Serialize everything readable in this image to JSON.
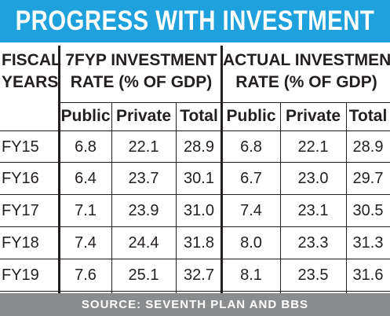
{
  "title": "PROGRESS WITH INVESTMENT",
  "header": {
    "col_years_line1": "FISCAL",
    "col_years_line2": "YEARS",
    "plan_line1": "7FYP INVESTMENT",
    "plan_line2": "RATE (% OF GDP)",
    "actual_line1": "ACTUAL INVESTMENT",
    "actual_line2": "RATE (% OF GDP)"
  },
  "subheaders": [
    "Public",
    "Private",
    "Total",
    "Public",
    "Private",
    "Total"
  ],
  "source": "SOURCE: SEVENTH PLAN AND BBS",
  "colors": {
    "title_bg": "#1ea1dc",
    "footer_bg": "#8a8c8e",
    "text": "#231f20"
  },
  "chart_data": {
    "type": "table",
    "title": "PROGRESS WITH INVESTMENT",
    "groups": [
      "7FYP INVESTMENT RATE (% OF GDP)",
      "ACTUAL INVESTMENT RATE (% OF GDP)"
    ],
    "columns": [
      "Public",
      "Private",
      "Total",
      "Public",
      "Private",
      "Total"
    ],
    "rows": [
      {
        "year": "FY15",
        "values": [
          "6.8",
          "22.1",
          "28.9",
          "6.8",
          "22.1",
          "28.9"
        ]
      },
      {
        "year": "FY16",
        "values": [
          "6.4",
          "23.7",
          "30.1",
          "6.7",
          "23.0",
          "29.7"
        ]
      },
      {
        "year": "FY17",
        "values": [
          "7.1",
          "23.9",
          "31.0",
          "7.4",
          "23.1",
          "30.5"
        ]
      },
      {
        "year": "FY18",
        "values": [
          "7.4",
          "24.4",
          "31.8",
          "8.0",
          "23.3",
          "31.3"
        ]
      },
      {
        "year": "FY19",
        "values": [
          "7.6",
          "25.1",
          "32.7",
          "8.1",
          "23.5",
          "31.6"
        ]
      }
    ],
    "source": "SOURCE: SEVENTH PLAN AND BBS"
  }
}
